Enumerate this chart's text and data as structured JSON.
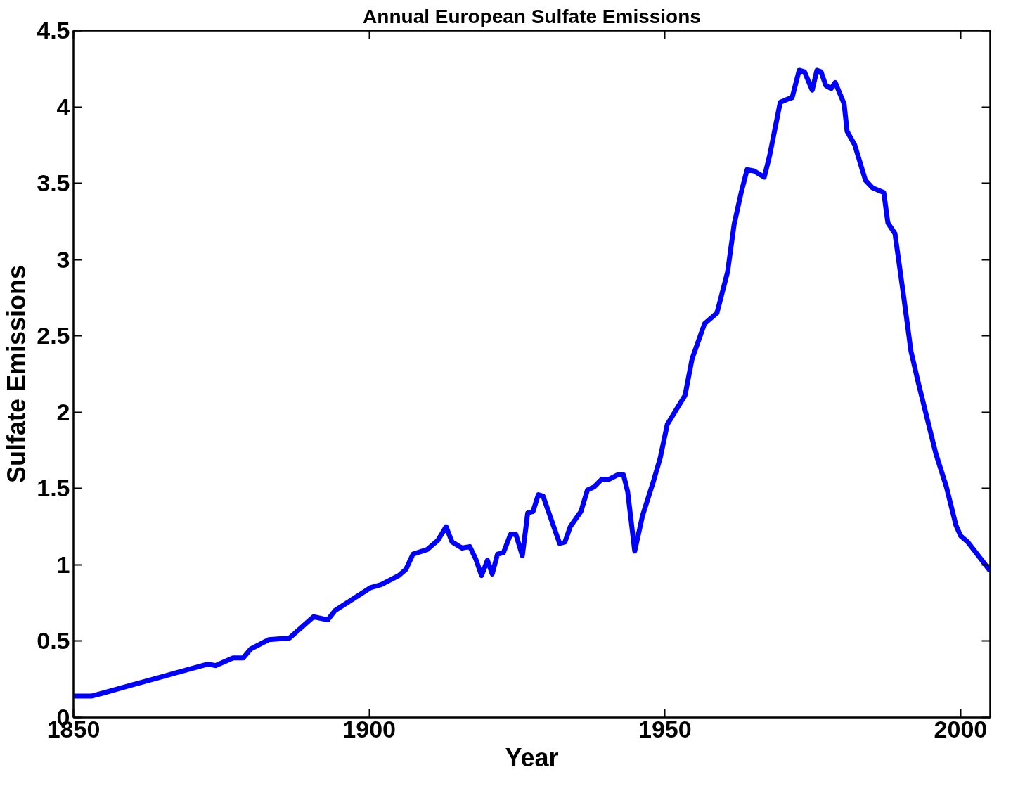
{
  "chart_data": {
    "type": "line",
    "title": "Annual European Sulfate Emissions",
    "xlabel": "Year",
    "ylabel": "Sulfate Emissions",
    "xlim": [
      1850,
      2005
    ],
    "xticks": [
      1850,
      1900,
      1950,
      2000
    ],
    "ylim": [
      0,
      4.5
    ],
    "yticks": [
      0,
      0.5,
      1,
      1.5,
      2,
      2.5,
      3,
      3.5,
      4,
      4.5
    ],
    "grid": false,
    "marker": "none",
    "line_style": "solid",
    "series": [
      {
        "color": "#0000ff",
        "x": [
          1850,
          1853,
          1855,
          1859.6,
          1864.3,
          1869,
          1872.7,
          1874,
          1877,
          1878.7,
          1880,
          1883,
          1886.5,
          1890.6,
          1893,
          1894.2,
          1897.8,
          1900.2,
          1902,
          1905,
          1906.2,
          1907.4,
          1909.8,
          1911.6,
          1913,
          1914,
          1915.7,
          1917,
          1918,
          1919,
          1920,
          1920.8,
          1921.7,
          1922.7,
          1923.9,
          1924.8,
          1925.9,
          1926.8,
          1927.7,
          1928.6,
          1929.4,
          1932.2,
          1933.1,
          1934,
          1935.8,
          1936.9,
          1938,
          1939.3,
          1940.5,
          1942,
          1943,
          1943.7,
          1944.9,
          1946.2,
          1948,
          1949.2,
          1950.4,
          1953.4,
          1954.6,
          1956.7,
          1958.8,
          1960.6,
          1961.7,
          1962.9,
          1963.9,
          1965.1,
          1966.8,
          1967.7,
          1969.5,
          1970.7,
          1971.5,
          1972.7,
          1973.6,
          1974.9,
          1975.7,
          1976.4,
          1977.2,
          1978.1,
          1978.8,
          1980.3,
          1980.8,
          1982.1,
          1983.9,
          1985.1,
          1987,
          1987.7,
          1988.9,
          1990.4,
          1991.6,
          1992.8,
          1995.8,
          1997.6,
          1999.2,
          2000,
          2001.2,
          2005
        ],
        "values": [
          0.14,
          0.14,
          0.16,
          0.21,
          0.26,
          0.31,
          0.35,
          0.34,
          0.39,
          0.39,
          0.45,
          0.51,
          0.52,
          0.66,
          0.64,
          0.7,
          0.79,
          0.85,
          0.87,
          0.93,
          0.97,
          1.07,
          1.1,
          1.16,
          1.25,
          1.15,
          1.11,
          1.12,
          1.04,
          0.93,
          1.03,
          0.94,
          1.07,
          1.08,
          1.2,
          1.2,
          1.06,
          1.34,
          1.35,
          1.46,
          1.45,
          1.14,
          1.15,
          1.25,
          1.35,
          1.49,
          1.51,
          1.56,
          1.56,
          1.59,
          1.59,
          1.48,
          1.09,
          1.32,
          1.54,
          1.7,
          1.92,
          2.11,
          2.35,
          2.58,
          2.65,
          2.92,
          3.23,
          3.44,
          3.59,
          3.58,
          3.54,
          3.68,
          4.03,
          4.05,
          4.06,
          4.24,
          4.23,
          4.11,
          4.24,
          4.23,
          4.14,
          4.12,
          4.16,
          4.02,
          3.84,
          3.75,
          3.52,
          3.47,
          3.44,
          3.24,
          3.17,
          2.75,
          2.4,
          2.2,
          1.73,
          1.51,
          1.26,
          1.19,
          1.15,
          0.96
        ]
      }
    ]
  }
}
